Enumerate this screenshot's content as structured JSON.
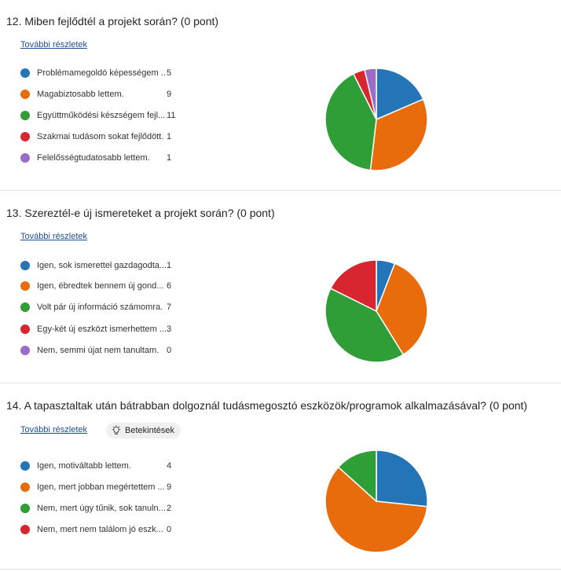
{
  "common": {
    "details_label": "További részletek",
    "insights_label": "Betekintések"
  },
  "questions": [
    {
      "title": "12.  Miben fejlődtél a projekt során? (0 pont)",
      "options": [
        {
          "label": "Problémamegoldó képességem ...",
          "count": "5",
          "value": 5,
          "color": "#2475b8"
        },
        {
          "label": "Magabiztosabb lettem.",
          "count": "9",
          "value": 9,
          "color": "#e86c0c"
        },
        {
          "label": "Együttműködési készségem fejl...",
          "count": "11",
          "value": 11,
          "color": "#2f9e37"
        },
        {
          "label": "Szakmai tudásom sokat fejlődött.",
          "count": "1",
          "value": 1,
          "color": "#d7262f"
        },
        {
          "label": "Felelősségtudatosabb lettem.",
          "count": "1",
          "value": 1,
          "color": "#9b6dc6"
        }
      ]
    },
    {
      "title": "13.  Szereztél-e új ismereteket a projekt során? (0 pont)",
      "options": [
        {
          "label": "Igen, sok ismerettel gazdagodta...",
          "count": "1",
          "value": 1,
          "color": "#2475b8"
        },
        {
          "label": "Igen, ébredtek bennem új gond...",
          "count": "6",
          "value": 6,
          "color": "#e86c0c"
        },
        {
          "label": "Volt pár új információ számomra.",
          "count": "7",
          "value": 7,
          "color": "#2f9e37"
        },
        {
          "label": "Egy-két új eszközt ismerhettem ...",
          "count": "3",
          "value": 3,
          "color": "#d7262f"
        },
        {
          "label": "Nem, semmi újat nem tanultam.",
          "count": "0",
          "value": 0,
          "color": "#9b6dc6"
        }
      ]
    },
    {
      "title": "14.  A tapasztaltak után bátrabban dolgoznál tudásmegosztó eszközök/programok alkalmazásával? (0 pont)",
      "options": [
        {
          "label": "Igen, motiváltabb lettem.",
          "count": "4",
          "value": 4,
          "color": "#2475b8"
        },
        {
          "label": "Igen, mert jobban megértettem ...",
          "count": "9",
          "value": 9,
          "color": "#e86c0c"
        },
        {
          "label": "Nem, mert úgy tűnik, sok tanuln...",
          "count": "2",
          "value": 2,
          "color": "#2f9e37"
        },
        {
          "label": "Nem, mert nem találom jó eszk...",
          "count": "0",
          "value": 0,
          "color": "#d7262f"
        }
      ]
    }
  ]
}
